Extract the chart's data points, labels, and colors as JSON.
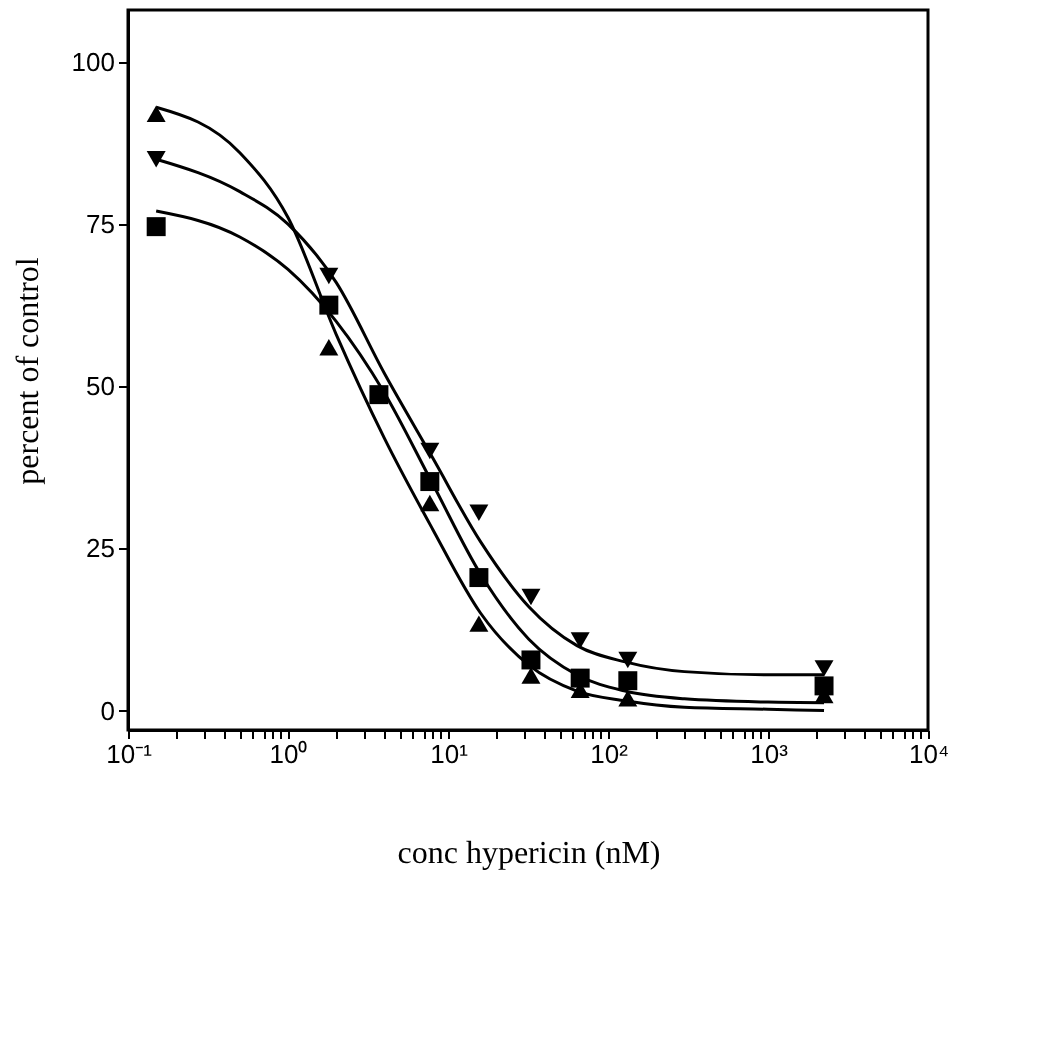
{
  "chart_data": {
    "type": "scatter",
    "xlabel": "conc hypericin  (nM)",
    "ylabel": "percent of control",
    "log": "x",
    "grid": false,
    "xlim": [
      0.1,
      10000
    ],
    "ylim": [
      -3,
      108
    ],
    "yticks": [
      0,
      25,
      50,
      75,
      100
    ],
    "xticks": [
      {
        "value": 0.1,
        "label": "10⁻¹"
      },
      {
        "value": 0.2,
        "label": null
      },
      {
        "value": 0.3,
        "label": null
      },
      {
        "value": 0.4,
        "label": null
      },
      {
        "value": 0.5,
        "label": null
      },
      {
        "value": 0.6,
        "label": null
      },
      {
        "value": 0.7,
        "label": null
      },
      {
        "value": 0.8,
        "label": null
      },
      {
        "value": 0.9,
        "label": null
      },
      {
        "value": 1,
        "label": "10⁰"
      },
      {
        "value": 2,
        "label": null
      },
      {
        "value": 3,
        "label": null
      },
      {
        "value": 4,
        "label": null
      },
      {
        "value": 5,
        "label": null
      },
      {
        "value": 6,
        "label": null
      },
      {
        "value": 7,
        "label": null
      },
      {
        "value": 8,
        "label": null
      },
      {
        "value": 9,
        "label": null
      },
      {
        "value": 10,
        "label": "10¹"
      },
      {
        "value": 20,
        "label": null
      },
      {
        "value": 30,
        "label": null
      },
      {
        "value": 40,
        "label": null
      },
      {
        "value": 50,
        "label": null
      },
      {
        "value": 60,
        "label": null
      },
      {
        "value": 70,
        "label": null
      },
      {
        "value": 80,
        "label": null
      },
      {
        "value": 90,
        "label": null
      },
      {
        "value": 100,
        "label": "10²"
      },
      {
        "value": 200,
        "label": null
      },
      {
        "value": 300,
        "label": null
      },
      {
        "value": 400,
        "label": null
      },
      {
        "value": 500,
        "label": null
      },
      {
        "value": 600,
        "label": null
      },
      {
        "value": 700,
        "label": null
      },
      {
        "value": 800,
        "label": null
      },
      {
        "value": 900,
        "label": null
      },
      {
        "value": 1000,
        "label": "10³"
      },
      {
        "value": 2000,
        "label": null
      },
      {
        "value": 3000,
        "label": null
      },
      {
        "value": 4000,
        "label": null
      },
      {
        "value": 5000,
        "label": null
      },
      {
        "value": 6000,
        "label": null
      },
      {
        "value": 7000,
        "label": null
      },
      {
        "value": 8000,
        "label": null
      },
      {
        "value": 9000,
        "label": null
      },
      {
        "value": 10000,
        "label": "10⁴"
      }
    ],
    "x": [
      0.15,
      1.8,
      3.7,
      7.7,
      15.6,
      33,
      67,
      133,
      2240
    ],
    "series": [
      {
        "marker": "triangle",
        "color": "#000000",
        "values": [
          92,
          56,
          null,
          32,
          13.4,
          5.4,
          3.2,
          1.9,
          2.4
        ]
      },
      {
        "marker": "triangle-down",
        "color": "#000000",
        "values": [
          85,
          67,
          null,
          40,
          30.5,
          17.5,
          10.8,
          7.8,
          6.5
        ]
      },
      {
        "marker": "square",
        "color": "#000000",
        "values": [
          74.6,
          62.5,
          48.7,
          35.3,
          20.5,
          7.8,
          5,
          4.6,
          3.8
        ]
      },
      {
        "type": "line",
        "line_style": "solid",
        "color": "#000000",
        "x": [
          0.15,
          0.5,
          1,
          2,
          4,
          8,
          16,
          32,
          64,
          128,
          300,
          1000,
          2240
        ],
        "values": [
          93,
          86,
          76,
          58,
          42,
          28,
          15,
          7,
          3,
          1.5,
          0.5,
          0.2,
          0
        ]
      },
      {
        "type": "line",
        "line_style": "solid",
        "color": "#000000",
        "x": [
          0.15,
          0.5,
          1,
          2,
          4,
          8,
          16,
          32,
          64,
          128,
          300,
          1000,
          2240
        ],
        "values": [
          85,
          80,
          75,
          66,
          52,
          39,
          26,
          16,
          10,
          7.5,
          6,
          5.5,
          5.5
        ]
      },
      {
        "type": "line",
        "line_style": "solid",
        "color": "#000000",
        "x": [
          0.15,
          0.5,
          1,
          2,
          4,
          8,
          16,
          32,
          64,
          128,
          300,
          1000,
          2240
        ],
        "values": [
          77,
          73,
          68,
          60,
          49,
          35,
          21,
          11,
          5.5,
          3,
          1.8,
          1.3,
          1.2
        ]
      }
    ]
  }
}
